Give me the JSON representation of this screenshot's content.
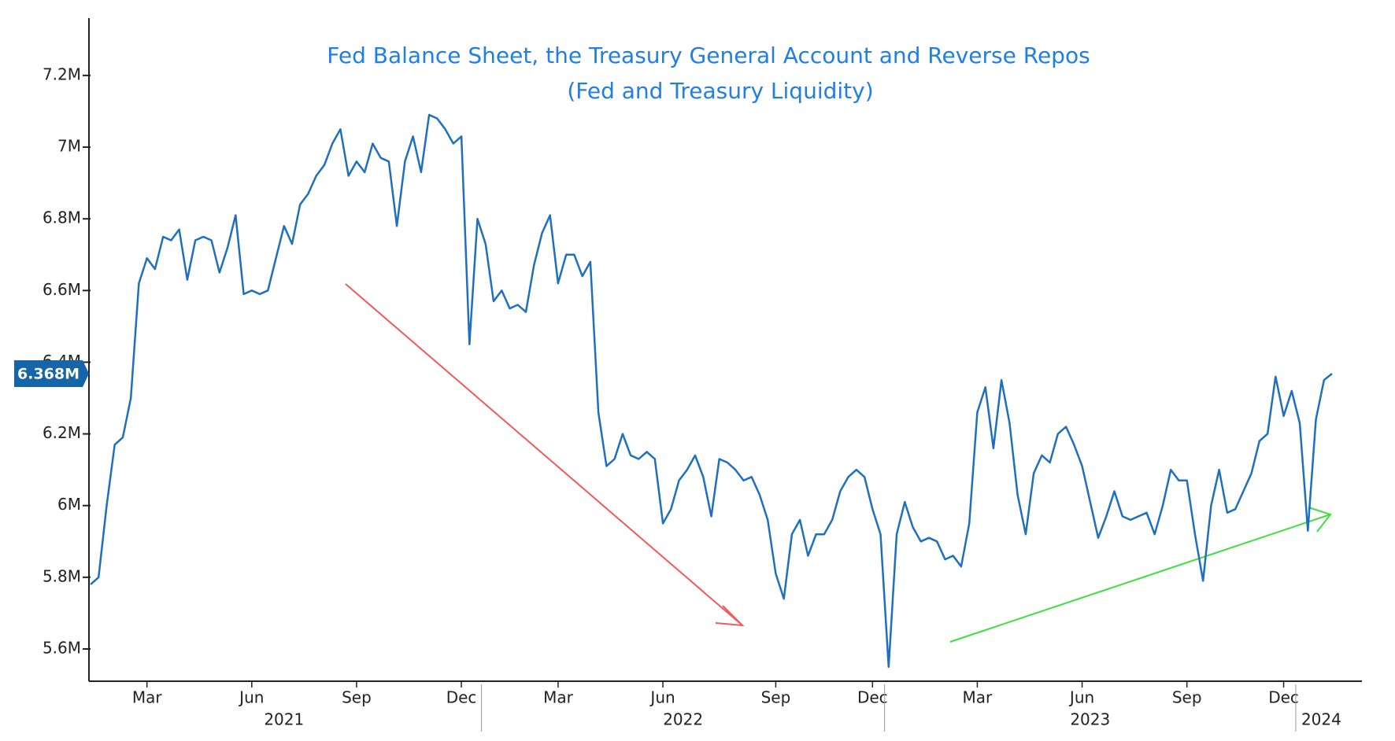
{
  "chart_data": {
    "type": "line",
    "title": "Fed Balance Sheet, the Treasury General Account and Reverse Repos",
    "subtitle": "(Fed and Treasury Liquidity)",
    "categories": [
      null,
      null,
      null,
      null,
      null,
      null,
      null,
      "Mar",
      null,
      null,
      null,
      null,
      null,
      null,
      null,
      null,
      null,
      null,
      null,
      null,
      "Jun",
      null,
      null,
      null,
      null,
      null,
      null,
      null,
      null,
      null,
      null,
      null,
      null,
      "Sep",
      null,
      null,
      null,
      null,
      null,
      null,
      null,
      null,
      null,
      null,
      null,
      null,
      "Dec",
      null,
      null,
      null,
      null,
      null,
      null,
      null,
      null,
      null,
      null,
      null,
      "Mar",
      null,
      null,
      null,
      null,
      null,
      null,
      null,
      null,
      null,
      null,
      null,
      null,
      "Jun",
      null,
      null,
      null,
      null,
      null,
      null,
      null,
      null,
      null,
      null,
      null,
      null,
      null,
      "Sep",
      null,
      null,
      null,
      null,
      null,
      null,
      null,
      null,
      null,
      null,
      null,
      "Dec",
      null,
      null,
      null,
      null,
      null,
      null,
      null,
      null,
      null,
      null,
      null,
      null,
      "Mar",
      null,
      null,
      null,
      null,
      null,
      null,
      null,
      null,
      null,
      null,
      null,
      null,
      "Jun",
      null,
      null,
      null,
      null,
      null,
      null,
      null,
      null,
      null,
      null,
      null,
      null,
      "Sep",
      null,
      null,
      null,
      null,
      null,
      null,
      null,
      null,
      null,
      null,
      null,
      "Dec",
      null,
      null,
      null,
      null,
      null,
      null
    ],
    "category_groups": [
      "2021",
      "2021",
      "2021",
      "2021",
      "2021",
      "2021",
      "2021",
      "2021",
      "2021",
      "2021",
      "2021",
      "2021",
      "2021",
      "2021",
      "2021",
      "2021",
      "2021",
      "2021",
      "2021",
      "2021",
      "2021",
      "2021",
      "2021",
      "2021",
      "2021",
      "2021",
      "2021",
      "2021",
      "2021",
      "2021",
      "2021",
      "2021",
      "2021",
      "2021",
      "2021",
      "2021",
      "2021",
      "2021",
      "2021",
      "2021",
      "2021",
      "2021",
      "2021",
      "2021",
      "2021",
      "2021",
      "2021",
      "2021",
      "2021",
      "2022",
      "2022",
      "2022",
      "2022",
      "2022",
      "2022",
      "2022",
      "2022",
      "2022",
      "2022",
      "2022",
      "2022",
      "2022",
      "2022",
      "2022",
      "2022",
      "2022",
      "2022",
      "2022",
      "2022",
      "2022",
      "2022",
      "2022",
      "2022",
      "2022",
      "2022",
      "2022",
      "2022",
      "2022",
      "2022",
      "2022",
      "2022",
      "2022",
      "2022",
      "2022",
      "2022",
      "2022",
      "2022",
      "2022",
      "2022",
      "2022",
      "2022",
      "2022",
      "2022",
      "2022",
      "2022",
      "2022",
      "2022",
      "2022",
      "2022",
      "2023",
      "2023",
      "2023",
      "2023",
      "2023",
      "2023",
      "2023",
      "2023",
      "2023",
      "2023",
      "2023",
      "2023",
      "2023",
      "2023",
      "2023",
      "2023",
      "2023",
      "2023",
      "2023",
      "2023",
      "2023",
      "2023",
      "2023",
      "2023",
      "2023",
      "2023",
      "2023",
      "2023",
      "2023",
      "2023",
      "2023",
      "2023",
      "2023",
      "2023",
      "2023",
      "2023",
      "2023",
      "2023",
      "2023",
      "2023",
      "2023",
      "2023",
      "2023",
      "2023",
      "2023",
      "2023",
      "2023",
      "2023",
      "2023",
      "2023",
      "2023",
      "2024",
      "2024",
      "2024",
      "2024"
    ],
    "series": [
      {
        "color": "#1f6fbf",
        "values": [
          5.78,
          5.8,
          6.0,
          6.17,
          6.19,
          6.3,
          6.62,
          6.69,
          6.66,
          6.75,
          6.74,
          6.77,
          6.63,
          6.74,
          6.75,
          6.74,
          6.65,
          6.72,
          6.81,
          6.59,
          6.6,
          6.59,
          6.6,
          6.69,
          6.78,
          6.73,
          6.84,
          6.87,
          6.92,
          6.95,
          7.01,
          7.05,
          6.92,
          6.96,
          6.93,
          7.01,
          6.97,
          6.96,
          6.78,
          6.96,
          7.03,
          6.93,
          7.09,
          7.08,
          7.05,
          7.01,
          7.03,
          6.45,
          6.8,
          6.73,
          6.57,
          6.6,
          6.55,
          6.56,
          6.54,
          6.67,
          6.76,
          6.81,
          6.62,
          6.7,
          6.7,
          6.64,
          6.68,
          6.26,
          6.11,
          6.13,
          6.2,
          6.14,
          6.13,
          6.15,
          6.13,
          5.95,
          5.99,
          6.07,
          6.1,
          6.14,
          6.08,
          5.97,
          6.13,
          6.12,
          6.1,
          6.07,
          6.08,
          6.03,
          5.96,
          5.81,
          5.74,
          5.92,
          5.96,
          5.86,
          5.92,
          5.92,
          5.96,
          6.04,
          6.08,
          6.1,
          6.08,
          5.99,
          5.92,
          5.55,
          5.92,
          6.01,
          5.94,
          5.9,
          5.91,
          5.9,
          5.85,
          5.86,
          5.83,
          5.95,
          6.26,
          6.33,
          6.16,
          6.35,
          6.23,
          6.03,
          5.92,
          6.09,
          6.14,
          6.12,
          6.2,
          6.22,
          6.17,
          6.11,
          6.01,
          5.91,
          5.97,
          6.04,
          5.97,
          5.96,
          5.97,
          5.98,
          5.92,
          6.0,
          6.1,
          6.07,
          6.07,
          5.92,
          5.79,
          6.0,
          6.1,
          5.98,
          5.99,
          6.04,
          6.09,
          6.18,
          6.2,
          6.36,
          6.25,
          6.32,
          6.23,
          5.93,
          6.24,
          6.35,
          6.368
        ],
        "value_labels": [
          null,
          null,
          null,
          null,
          null,
          null,
          null,
          null,
          null,
          null,
          null,
          null,
          null,
          null,
          null,
          null,
          null,
          null,
          null,
          null,
          null,
          null,
          null,
          null,
          null,
          null,
          null,
          null,
          null,
          null,
          null,
          null,
          null,
          null,
          null,
          null,
          null,
          null,
          null,
          null,
          null,
          null,
          null,
          null,
          null,
          null,
          null,
          null,
          null,
          null,
          null,
          null,
          null,
          null,
          null,
          null,
          null,
          null,
          null,
          null,
          null,
          null,
          null,
          null,
          null,
          null,
          null,
          null,
          null,
          null,
          null,
          null,
          null,
          null,
          null,
          null,
          null,
          null,
          null,
          null,
          null,
          null,
          null,
          null,
          null,
          null,
          null,
          null,
          null,
          null,
          null,
          null,
          null,
          null,
          null,
          null,
          null,
          null,
          null,
          null,
          null,
          null,
          null,
          null,
          null,
          null,
          null,
          null,
          null,
          null,
          null,
          null,
          null,
          null,
          null,
          null,
          null,
          null,
          null,
          null,
          null,
          null,
          null,
          null,
          null,
          null,
          null,
          null,
          null,
          null,
          null,
          null,
          null,
          null,
          null,
          null,
          null,
          null,
          null,
          null,
          null,
          null,
          null,
          null,
          null,
          null,
          null,
          null,
          null,
          null,
          null,
          null,
          null,
          null,
          "6.368M"
        ]
      }
    ],
    "ylim": [
      5.51,
      7.36
    ],
    "yticks": [
      {
        "value": 5.6,
        "label": "5.6M"
      },
      {
        "value": 5.8,
        "label": "5.8M"
      },
      {
        "value": 6,
        "label": "6M"
      },
      {
        "value": 6.2,
        "label": "6.2M"
      },
      {
        "value": 6.4,
        "label": "6.4M"
      },
      {
        "value": 6.6,
        "label": "6.6M"
      },
      {
        "value": 6.8,
        "label": "6.8M"
      },
      {
        "value": 7,
        "label": "7M"
      },
      {
        "value": 7.2,
        "label": "7.2M"
      }
    ]
  }
}
